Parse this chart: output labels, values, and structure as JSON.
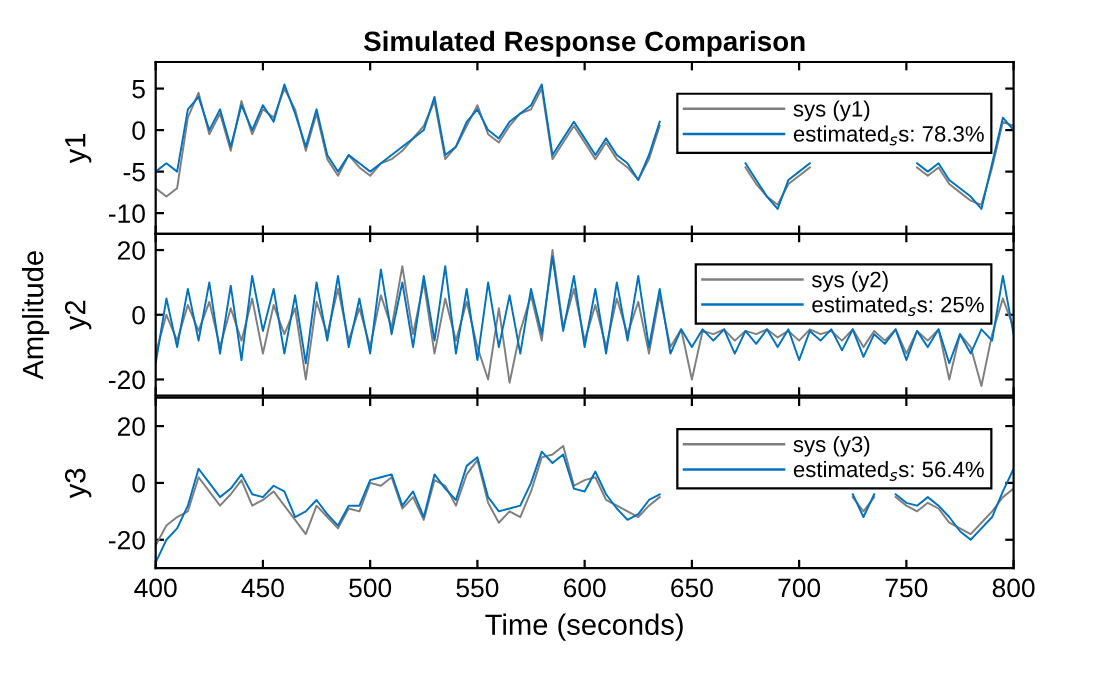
{
  "chart_data": [
    {
      "type": "line",
      "title": "Simulated Response Comparison",
      "ylabel": "y1",
      "legend": "top right",
      "tick_labels": "y",
      "x": [
        400,
        405,
        410,
        415,
        420,
        425,
        430,
        435,
        440,
        445,
        450,
        455,
        460,
        465,
        470,
        475,
        480,
        485,
        490,
        495,
        500,
        505,
        510,
        515,
        520,
        525,
        530,
        535,
        540,
        545,
        550,
        555,
        560,
        565,
        570,
        575,
        580,
        585,
        590,
        595,
        600,
        605,
        610,
        615,
        620,
        625,
        630,
        635,
        640,
        645,
        650,
        655,
        660,
        665,
        670,
        675,
        680,
        685,
        690,
        695,
        700,
        705,
        710,
        715,
        720,
        725,
        730,
        735,
        740,
        745,
        750,
        755,
        760,
        765,
        770,
        775,
        780,
        785,
        790,
        795,
        800
      ],
      "xlim": [
        400,
        800
      ],
      "xticks": [
        400,
        450,
        500,
        550,
        600,
        650,
        700,
        750,
        800
      ],
      "ylim": [
        -12.5,
        8.2
      ],
      "yticks": [
        -10,
        -5,
        0,
        5
      ],
      "series": [
        {
          "name": "sys (y1)",
          "color": "#7f7f7f",
          "values": [
            -7,
            -8,
            -7,
            1.5,
            4.5,
            -0.5,
            2,
            -2.5,
            3.5,
            -0.5,
            2.5,
            1.5,
            5,
            2.5,
            -2.5,
            2,
            -3.5,
            -5.5,
            -3,
            -4.5,
            -5.5,
            -4,
            -3.5,
            -2.5,
            -1,
            0.5,
            3.5,
            -3.5,
            -2,
            0.5,
            3,
            -0.5,
            -1.5,
            0.5,
            2,
            2.5,
            5,
            -3.5,
            -1.5,
            0.5,
            -1.5,
            -3.5,
            -1.5,
            -3.5,
            -4.5,
            -6,
            -3.5,
            0.5,
            null,
            null,
            null,
            null,
            null,
            null,
            null,
            -4.5,
            -6.5,
            -8,
            -9,
            -6.5,
            -5.5,
            -4.5,
            null,
            null,
            null,
            null,
            null,
            null,
            null,
            null,
            null,
            -4.5,
            -5.5,
            -4.5,
            -6.5,
            -7.5,
            -8.5,
            -9,
            -4.5,
            1,
            0.5
          ]
        },
        {
          "name": "estimated$_{s}$s: 78.3%",
          "color": "#0072bd",
          "values": [
            -5,
            -4,
            -5,
            2.5,
            4,
            0,
            2.5,
            -2,
            3,
            0,
            3,
            1,
            5.5,
            2,
            -2,
            2.5,
            -3,
            -5,
            -3,
            -4,
            -5,
            -4,
            -3,
            -2,
            -1,
            0,
            4,
            -3,
            -2,
            1,
            2.5,
            0,
            -1,
            1,
            2,
            3,
            5.5,
            -3,
            -1,
            1,
            -1,
            -3,
            -1,
            -3,
            -4,
            -6,
            -3,
            1,
            null,
            null,
            null,
            null,
            null,
            null,
            null,
            -4,
            -6,
            -8,
            -9.5,
            -6,
            -5,
            -4,
            null,
            null,
            null,
            null,
            null,
            null,
            null,
            null,
            null,
            -4,
            -5,
            -4,
            -6,
            -7,
            -8,
            -9.5,
            -4,
            1.5,
            0
          ]
        }
      ]
    },
    {
      "type": "line",
      "ylabel": "y2",
      "annotations": [
        "Amplitude"
      ],
      "legend": "top right",
      "tick_labels": "y",
      "x": [
        400,
        405,
        410,
        415,
        420,
        425,
        430,
        435,
        440,
        445,
        450,
        455,
        460,
        465,
        470,
        475,
        480,
        485,
        490,
        495,
        500,
        505,
        510,
        515,
        520,
        525,
        530,
        535,
        540,
        545,
        550,
        555,
        560,
        565,
        570,
        575,
        580,
        585,
        590,
        595,
        600,
        605,
        610,
        615,
        620,
        625,
        630,
        635,
        640,
        645,
        650,
        655,
        660,
        665,
        670,
        675,
        680,
        685,
        690,
        695,
        700,
        705,
        710,
        715,
        720,
        725,
        730,
        735,
        740,
        745,
        750,
        755,
        760,
        765,
        770,
        775,
        780,
        785,
        790,
        795,
        800
      ],
      "xlim": [
        400,
        800
      ],
      "xticks": [
        400,
        450,
        500,
        550,
        600,
        650,
        700,
        750,
        800
      ],
      "ylim": [
        -25,
        25
      ],
      "yticks": [
        -20,
        0,
        20
      ],
      "series": [
        {
          "name": "sys (y2)",
          "color": "#7f7f7f",
          "values": [
            -12,
            0,
            -8,
            3,
            -5,
            4,
            -10,
            2,
            -8,
            5,
            -12,
            3,
            -6,
            2,
            -20,
            4,
            -6,
            8,
            -8,
            2,
            -10,
            6,
            -4,
            15,
            -6,
            10,
            -12,
            5,
            -8,
            4,
            -10,
            -20,
            2,
            -21,
            -5,
            6,
            -8,
            20,
            -4,
            8,
            -8,
            3,
            -10,
            5,
            -6,
            4,
            -12,
            6,
            -10,
            -4.5,
            -20,
            -5,
            -6,
            -4.5,
            -8,
            -5,
            -6,
            -4.5,
            -7,
            -5,
            -8,
            -4.5,
            -6,
            -5,
            -8,
            -4.5,
            -10,
            -5,
            -8,
            -4.5,
            -12,
            -5,
            -8,
            -4.5,
            -20,
            -6,
            -10,
            -22,
            -6,
            5,
            -4
          ]
        },
        {
          "name": "estimated$_{s}$s: 25%",
          "color": "#0072bd",
          "values": [
            -15,
            5,
            -10,
            8,
            -8,
            10,
            -12,
            9,
            -14,
            12,
            -5,
            8,
            -12,
            6,
            -15,
            10,
            -8,
            12,
            -10,
            5,
            -12,
            14,
            -6,
            10,
            -10,
            12,
            -8,
            15,
            -12,
            8,
            -14,
            10,
            -10,
            6,
            -12,
            8,
            -6,
            18,
            -5,
            12,
            -10,
            8,
            -12,
            10,
            -8,
            12,
            -10,
            8,
            -12,
            -4.5,
            -10,
            -4.5,
            -8,
            -4.5,
            -12,
            -5,
            -9,
            -4.5,
            -10,
            -4.5,
            -14,
            -5,
            -8,
            -4.5,
            -11,
            -4.5,
            -13,
            -6,
            -9,
            -4.5,
            -14,
            -5,
            -10,
            -4.5,
            -15,
            -6,
            -12,
            -4.5,
            -8,
            12,
            -6
          ]
        }
      ]
    },
    {
      "type": "line",
      "ylabel": "y3",
      "xlabel": "Time (seconds)",
      "legend": "top right",
      "x": [
        400,
        405,
        410,
        415,
        420,
        425,
        430,
        435,
        440,
        445,
        450,
        455,
        460,
        465,
        470,
        475,
        480,
        485,
        490,
        495,
        500,
        505,
        510,
        515,
        520,
        525,
        530,
        535,
        540,
        545,
        550,
        555,
        560,
        565,
        570,
        575,
        580,
        585,
        590,
        595,
        600,
        605,
        610,
        615,
        620,
        625,
        630,
        635,
        640,
        645,
        650,
        655,
        660,
        665,
        670,
        675,
        680,
        685,
        690,
        695,
        700,
        705,
        710,
        715,
        720,
        725,
        730,
        735,
        740,
        745,
        750,
        755,
        760,
        765,
        770,
        775,
        780,
        785,
        790,
        795,
        800
      ],
      "xlim": [
        400,
        800
      ],
      "xticks": [
        400,
        450,
        500,
        550,
        600,
        650,
        700,
        750,
        800
      ],
      "ylim": [
        -30,
        30
      ],
      "yticks": [
        -20,
        0,
        20
      ],
      "series": [
        {
          "name": "sys (y3)",
          "color": "#7f7f7f",
          "values": [
            -22,
            -15,
            -12,
            -10,
            2,
            -3,
            -8,
            -4,
            1,
            -8,
            -6,
            -3,
            -8,
            -13,
            -18,
            -8,
            -12,
            -16,
            -9,
            -10,
            0,
            -1,
            2,
            -9,
            -5,
            -13,
            1,
            -1,
            -8,
            3,
            8,
            -7,
            -14,
            -10,
            -12,
            -3,
            9,
            10,
            13,
            -1,
            1,
            2,
            -6,
            -8,
            -10,
            -12,
            -8,
            -5,
            null,
            null,
            null,
            null,
            null,
            null,
            null,
            null,
            null,
            null,
            null,
            null,
            null,
            null,
            null,
            null,
            null,
            -5,
            -10,
            -5,
            null,
            -5,
            -8,
            -10,
            -7,
            -9,
            -14,
            -16,
            -18,
            -14,
            -10,
            -5,
            -2
          ]
        },
        {
          "name": "estimated$_{s}$s: 56.4%",
          "color": "#0072bd",
          "values": [
            -28,
            -20,
            -16,
            -8,
            5,
            0,
            -5,
            -2,
            3,
            -4,
            -5,
            -1,
            -3,
            -12,
            -10,
            -6,
            -11,
            -15,
            -8,
            -8,
            1,
            2,
            3,
            -8,
            -3,
            -12,
            3,
            -2,
            -6,
            6,
            9,
            -5,
            -10,
            -9,
            -8,
            0,
            11,
            7,
            10,
            -2,
            -3,
            4,
            -4,
            -9,
            -13,
            -11,
            -6,
            -4,
            null,
            null,
            null,
            null,
            null,
            null,
            null,
            null,
            null,
            null,
            null,
            null,
            null,
            null,
            null,
            null,
            null,
            -4,
            -12,
            -4,
            null,
            -4,
            -7,
            -8,
            -5,
            -8,
            -12,
            -17,
            -20,
            -16,
            -12,
            -3,
            5
          ]
        }
      ]
    }
  ]
}
